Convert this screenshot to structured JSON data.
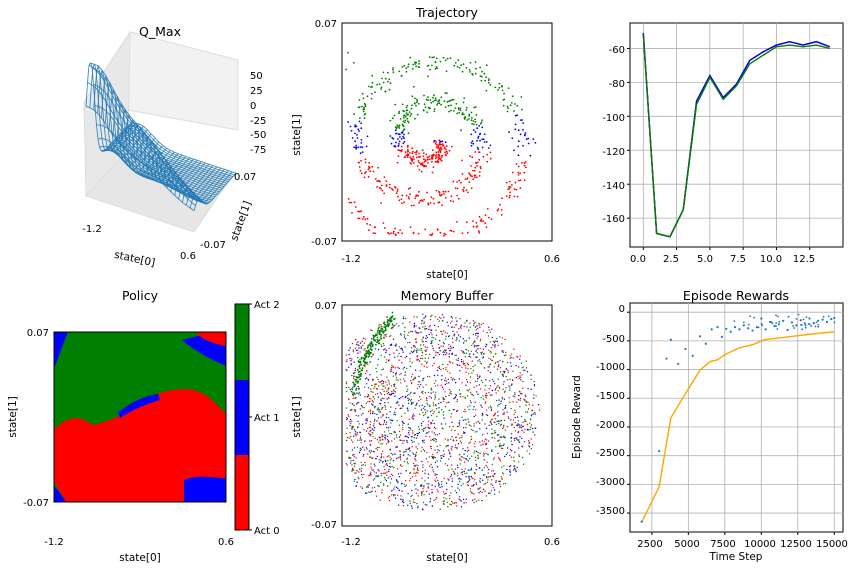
{
  "chart_data": [
    {
      "id": "qmax",
      "type": "surface3d",
      "title": "Q_Max",
      "xlabel": "state[0]",
      "ylabel": "state[1]",
      "x_ticks": [
        "-1.2",
        "0.6"
      ],
      "y_ticks": [
        "-0.07",
        "0.07"
      ],
      "z_ticks": [
        "50",
        "25",
        "0",
        "-25",
        "-50",
        "-75"
      ],
      "zlim": [
        -85,
        65
      ],
      "color": "#1f77b4"
    },
    {
      "id": "trajectory",
      "type": "scatter",
      "title": "Trajectory",
      "xlabel": "state[0]",
      "ylabel": "state[1]",
      "x_ticks": [
        "-1.2",
        "0.6"
      ],
      "y_ticks": [
        "-0.07",
        "0.07"
      ],
      "xlim": [
        -1.2,
        0.6
      ],
      "ylim": [
        -0.07,
        0.07
      ],
      "action_colors": [
        "#ff0000",
        "#0000ff",
        "#008000"
      ]
    },
    {
      "id": "losses",
      "type": "line",
      "x": [
        0,
        1,
        2,
        3,
        4,
        5,
        6,
        7,
        8,
        9,
        10,
        11,
        12,
        13,
        14
      ],
      "xlim": [
        -1,
        15
      ],
      "ylim": [
        -177,
        -45
      ],
      "x_ticks": [
        "0.0",
        "2.5",
        "5.0",
        "7.5",
        "10.0",
        "12.5"
      ],
      "x_tick_values": [
        0,
        2.5,
        5,
        7.5,
        10,
        12.5
      ],
      "y_ticks": [
        "-60",
        "-80",
        "-100",
        "-120",
        "-140",
        "-160"
      ],
      "y_tick_values": [
        -60,
        -80,
        -100,
        -120,
        -140,
        -160
      ],
      "grid": true,
      "series": [
        {
          "color": "#ff0000",
          "values": [
            -51,
            -169,
            -171,
            -155,
            -91,
            -76,
            -89,
            -81,
            -67,
            -62,
            -58,
            -56,
            -58,
            -56,
            -59
          ]
        },
        {
          "color": "#0000ff",
          "values": [
            -51,
            -169,
            -171,
            -155,
            -91,
            -76,
            -89,
            -81,
            -67,
            -62,
            -58,
            -56,
            -58,
            -56,
            -59
          ]
        },
        {
          "color": "#008000",
          "values": [
            -52,
            -169,
            -171,
            -155,
            -93,
            -77,
            -90,
            -82,
            -69,
            -64,
            -59,
            -58,
            -59,
            -58,
            -60
          ]
        }
      ]
    },
    {
      "id": "policy",
      "type": "heatmap",
      "title": "Policy",
      "xlabel": "state[0]",
      "ylabel": "state[1]",
      "x_ticks": [
        "-1.2",
        "0.6"
      ],
      "y_ticks": [
        "0.07",
        "-0.07"
      ],
      "colorbar_labels": [
        "Act 2",
        "Act 1",
        "Act 0"
      ],
      "colors": [
        "#ff0000",
        "#0000ff",
        "#008000"
      ]
    },
    {
      "id": "memory",
      "type": "scatter",
      "title": "Memory Buffer",
      "xlabel": "state[0]",
      "ylabel": "state[1]",
      "x_ticks": [
        "-1.2",
        "0.6"
      ],
      "y_ticks": [
        "0.07",
        "-0.07"
      ],
      "xlim": [
        -1.2,
        0.6
      ],
      "ylim": [
        -0.07,
        0.07
      ]
    },
    {
      "id": "rewards",
      "type": "scatter+line",
      "title": "Episode Rewards",
      "xlabel": "Time Step",
      "ylabel": "Episode Reward",
      "xlim": [
        1000,
        15600
      ],
      "ylim": [
        -3830,
        160
      ],
      "x_ticks": [
        "2500",
        "5000",
        "7500",
        "10000",
        "12500",
        "15000"
      ],
      "x_tick_values": [
        2500,
        5000,
        7500,
        10000,
        12500,
        15000
      ],
      "y_ticks": [
        "0",
        "-500",
        "-1000",
        "-1500",
        "-2000",
        "-2500",
        "-3000",
        "-3500"
      ],
      "y_tick_values": [
        0,
        -500,
        -1000,
        -1500,
        -2000,
        -2500,
        -3000,
        -3500
      ],
      "grid": true,
      "points_color": "#1f77b4",
      "line_color": "#ffa500",
      "line": {
        "x": [
          1800,
          3000,
          3800,
          4800,
          5800,
          6500,
          7000,
          7500,
          8500,
          9500,
          10200,
          11500,
          12500,
          13500,
          15000
        ],
        "y": [
          -3660,
          -3040,
          -1840,
          -1420,
          -1010,
          -860,
          -830,
          -740,
          -620,
          -560,
          -480,
          -440,
          -410,
          -380,
          -340
        ]
      },
      "points": {
        "x": [
          1800,
          3000,
          3500,
          3800,
          4300,
          4800,
          5300,
          5800,
          6200,
          6600,
          7000,
          7300,
          7600,
          7900,
          8200,
          8500,
          8800,
          9100,
          9400,
          9700,
          10000,
          10300,
          10600,
          10900,
          11200,
          11500,
          11800,
          12100,
          12400,
          12700,
          13000,
          13300,
          13600,
          13900,
          14200,
          14500,
          14800,
          15000
        ],
        "y": [
          -3650,
          -2420,
          -810,
          -480,
          -900,
          -640,
          -760,
          -420,
          -550,
          -300,
          -260,
          -430,
          -290,
          -340,
          -260,
          -300,
          -230,
          -280,
          -320,
          -260,
          -110,
          -300,
          -170,
          -240,
          -210,
          -150,
          -310,
          -180,
          -230,
          -140,
          -200,
          -110,
          -190,
          -150,
          -130,
          -170,
          -120,
          -100
        ]
      }
    }
  ]
}
